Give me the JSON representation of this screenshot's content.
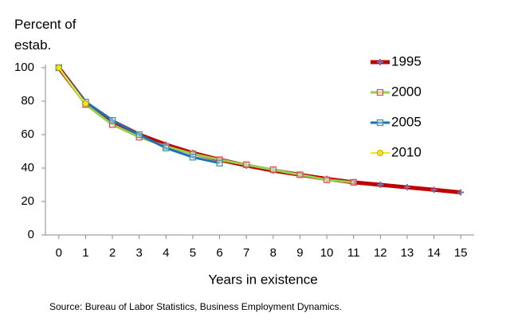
{
  "chart_data": {
    "type": "line",
    "ylabel": "Percent of estab.",
    "xlabel": "Years in existence",
    "source": "Source: Bureau of Labor Statistics, Business Employment Dynamics.",
    "x": [
      0,
      1,
      2,
      3,
      4,
      5,
      6,
      7,
      8,
      9,
      10,
      11,
      12,
      13,
      14,
      15
    ],
    "xlim": [
      -0.5,
      15.5
    ],
    "xticks": [
      0,
      1,
      2,
      3,
      4,
      5,
      6,
      7,
      8,
      9,
      10,
      11,
      12,
      13,
      14,
      15
    ],
    "ylim": [
      0,
      100
    ],
    "yticks": [
      0,
      20,
      40,
      60,
      80,
      100
    ],
    "grid": false,
    "legend": "right",
    "series": [
      {
        "name": "1995",
        "color": "#c00000",
        "marker_color": "#7b6fb0",
        "marker": "plus",
        "width": 5,
        "values": [
          100,
          79,
          68,
          60,
          54,
          49,
          45,
          41.5,
          38.5,
          36,
          33.5,
          31.5,
          30,
          28.5,
          27,
          25.5
        ]
      },
      {
        "name": "2000",
        "color": "#92d050",
        "marker_color": "#e05050",
        "marker": "square",
        "width": 3,
        "values": [
          100,
          78,
          66,
          58.5,
          53,
          48.5,
          45,
          42,
          39,
          36,
          33,
          31.5,
          null,
          null,
          null,
          null
        ]
      },
      {
        "name": "2005",
        "color": "#1f6fb5",
        "marker_color": "#3a9a9a",
        "marker": "square",
        "width": 3,
        "values": [
          100,
          79.5,
          68.5,
          60,
          52,
          46.5,
          43,
          null,
          null,
          null,
          null,
          null,
          null,
          null,
          null,
          null
        ]
      },
      {
        "name": "2010",
        "color": "#f5e61a",
        "marker_color": "#c8a800",
        "marker": "circle",
        "width": 2,
        "values": [
          100,
          78.5,
          null,
          null,
          null,
          null,
          null,
          null,
          null,
          null,
          null,
          null,
          null,
          null,
          null,
          null
        ]
      }
    ]
  }
}
